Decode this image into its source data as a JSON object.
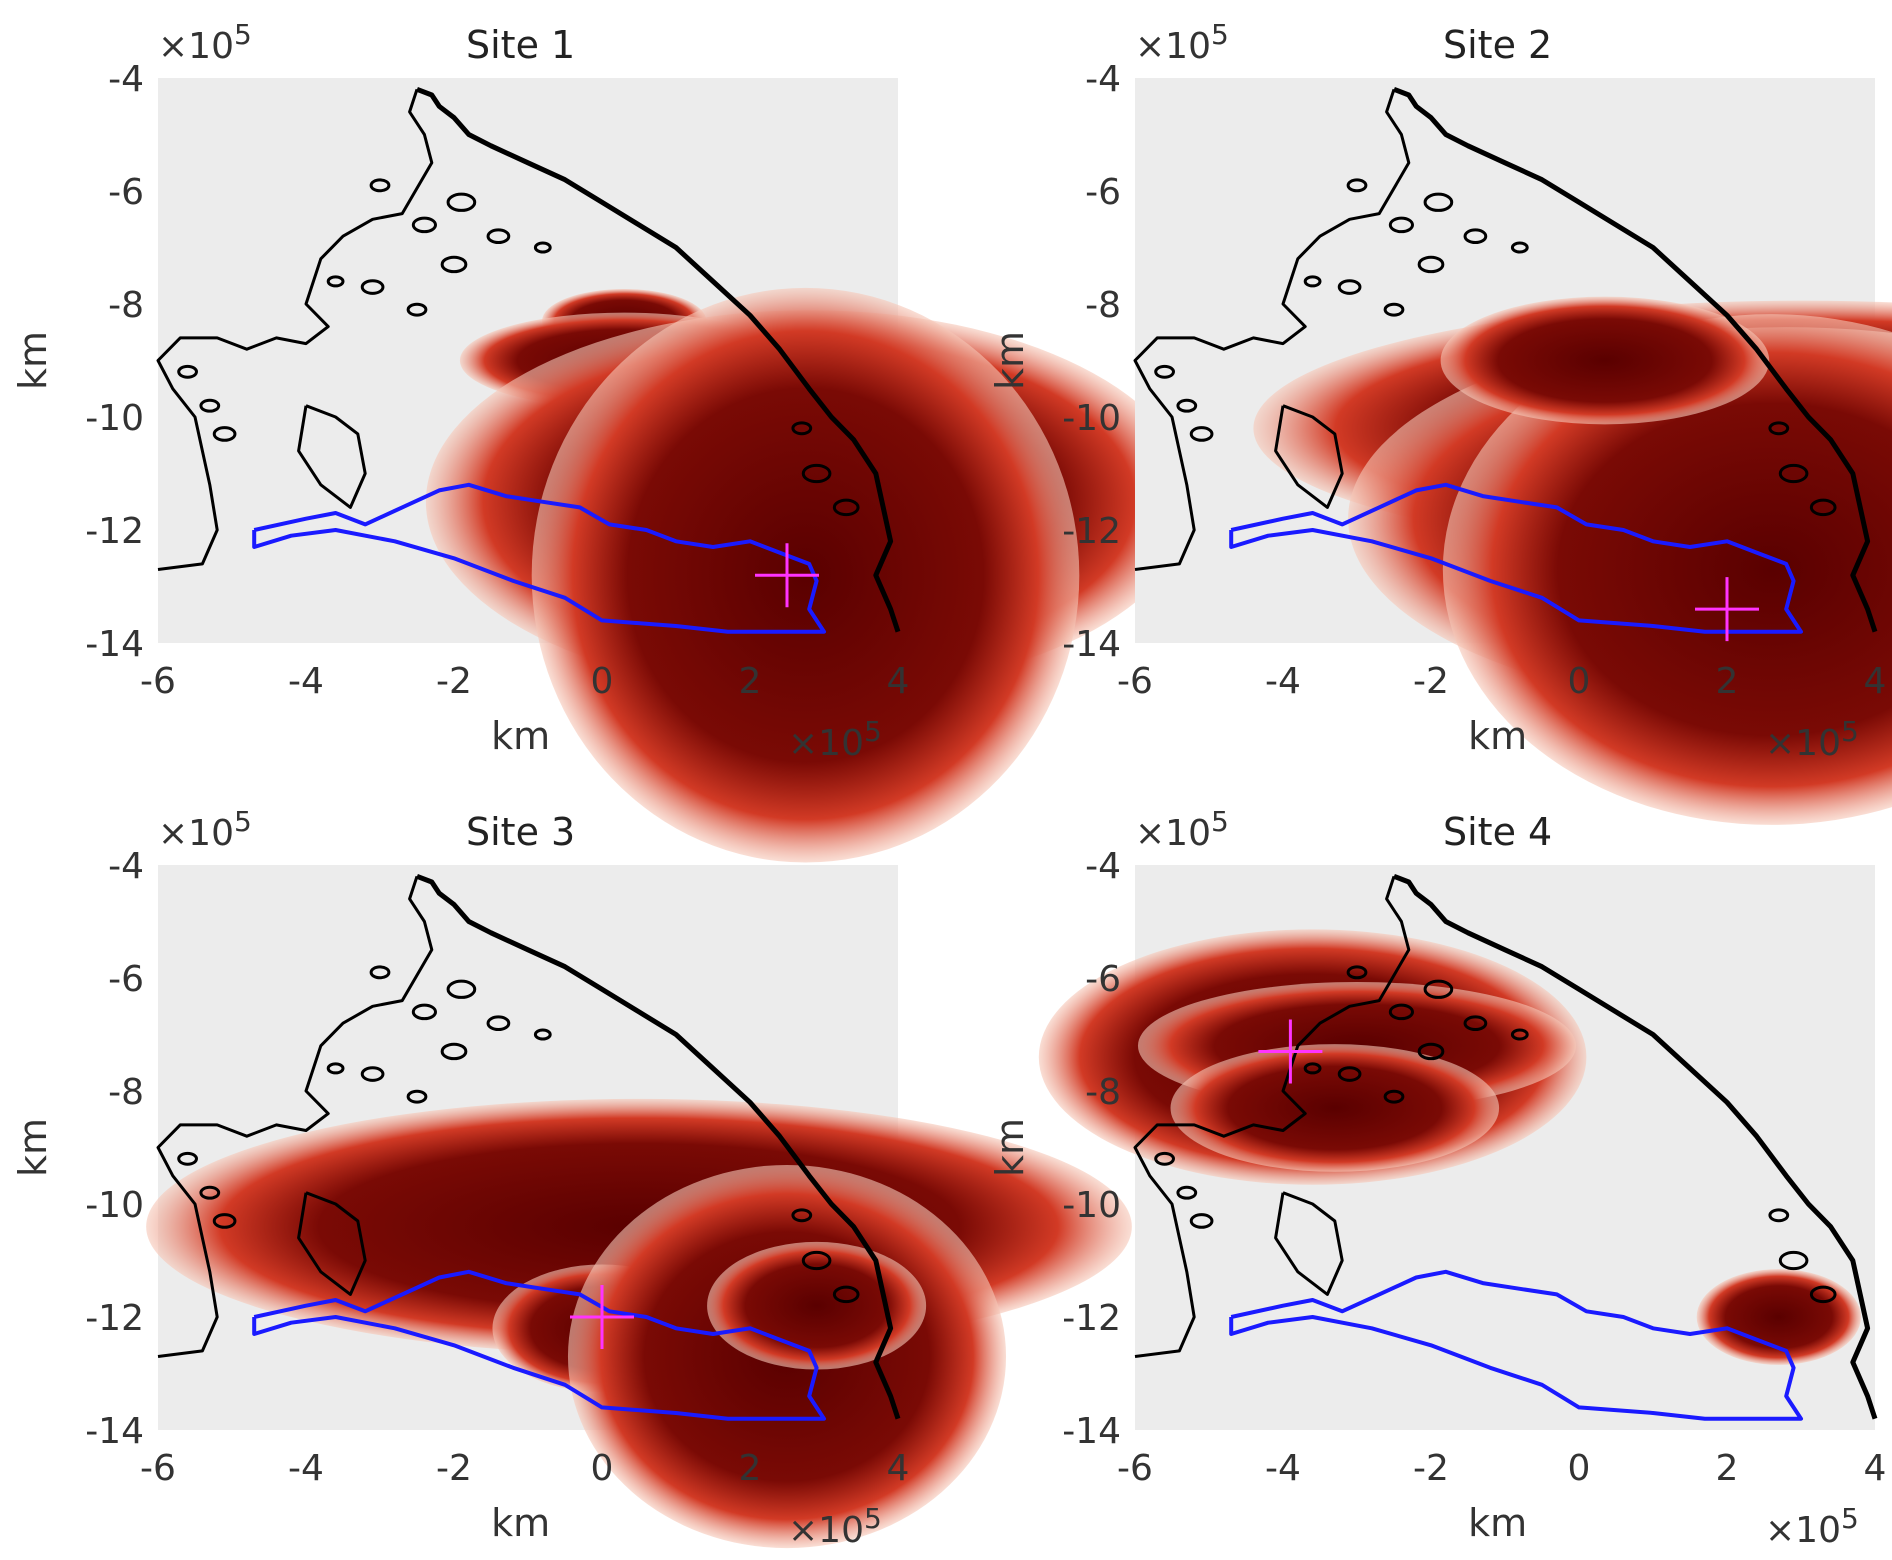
{
  "chart_data": [
    {
      "type": "map",
      "title": "Site 1",
      "xlabel": "km",
      "ylabel": "km",
      "xlim": [
        -600000,
        400000
      ],
      "ylim": [
        -1400000,
        -400000
      ],
      "xticks": [
        -600000,
        -400000,
        -200000,
        0,
        200000,
        400000
      ],
      "yticks": [
        -1400000,
        -1200000,
        -1000000,
        -800000,
        -600000,
        -400000
      ],
      "xtick_labels": [
        "-6",
        "-4",
        "-2",
        "0",
        "2",
        "4"
      ],
      "ytick_labels": [
        "-14",
        "-12",
        "-10",
        "-8",
        "-6",
        "-4"
      ],
      "axis_exponent_prefix": "×10",
      "axis_exponent_power": "5",
      "site_marker": {
        "x": 250000,
        "y": -1280000
      },
      "hotspots": [
        {
          "x": 0.3,
          "y": -0.83,
          "rx": 0.015,
          "ry": 0.01
        },
        {
          "x": 0.3,
          "y": -0.9,
          "rx": 0.03,
          "ry": 0.015
        },
        {
          "x": 0.25,
          "y": -1.0,
          "rx": 0.008,
          "ry": 0.01
        },
        {
          "x": 2.9,
          "y": -1.07,
          "rx": 0.04,
          "ry": 0.03
        },
        {
          "x": 2.8,
          "y": -1.15,
          "rx": 0.07,
          "ry": 0.06
        },
        {
          "x": 2.75,
          "y": -1.28,
          "rx": 0.05,
          "ry": 0.09
        }
      ],
      "legend": "none",
      "grid": false
    },
    {
      "type": "map",
      "title": "Site 2",
      "xlabel": "km",
      "ylabel": "km",
      "xlim": [
        -600000,
        400000
      ],
      "ylim": [
        -1400000,
        -400000
      ],
      "xticks": [
        -600000,
        -400000,
        -200000,
        0,
        200000,
        400000
      ],
      "yticks": [
        -1400000,
        -1200000,
        -1000000,
        -800000,
        -600000,
        -400000
      ],
      "xtick_labels": [
        "-6",
        "-4",
        "-2",
        "0",
        "2",
        "4"
      ],
      "ytick_labels": [
        "-14",
        "-12",
        "-10",
        "-8",
        "-6",
        "-4"
      ],
      "axis_exponent_prefix": "×10",
      "axis_exponent_power": "5",
      "site_marker": {
        "x": 200000,
        "y": -1340000
      },
      "hotspots": [
        {
          "x": 3.0,
          "y": -1.02,
          "rx": 0.1,
          "ry": 0.04
        },
        {
          "x": 3.2,
          "y": -1.08,
          "rx": 0.05,
          "ry": 0.02
        },
        {
          "x": 2.8,
          "y": -1.18,
          "rx": 0.08,
          "ry": 0.06
        },
        {
          "x": 2.6,
          "y": -1.27,
          "rx": 0.06,
          "ry": 0.08
        },
        {
          "x": 0.35,
          "y": -0.9,
          "rx": 0.03,
          "ry": 0.02
        }
      ],
      "legend": "none",
      "grid": false
    },
    {
      "type": "map",
      "title": "Site 3",
      "xlabel": "km",
      "ylabel": "km",
      "xlim": [
        -600000,
        400000
      ],
      "ylim": [
        -1400000,
        -400000
      ],
      "xticks": [
        -600000,
        -400000,
        -200000,
        0,
        200000,
        400000
      ],
      "yticks": [
        -1400000,
        -1200000,
        -1000000,
        -800000,
        -600000,
        -400000
      ],
      "xtick_labels": [
        "-6",
        "-4",
        "-2",
        "0",
        "2",
        "4"
      ],
      "ytick_labels": [
        "-14",
        "-12",
        "-10",
        "-8",
        "-6",
        "-4"
      ],
      "axis_exponent_prefix": "×10",
      "axis_exponent_power": "5",
      "site_marker": {
        "x": 0,
        "y": -1200000
      },
      "hotspots": [
        {
          "x": 0.5,
          "y": -1.04,
          "rx": 0.09,
          "ry": 0.04
        },
        {
          "x": 0.0,
          "y": -1.22,
          "rx": 0.02,
          "ry": 0.02
        },
        {
          "x": 2.5,
          "y": -1.27,
          "rx": 0.04,
          "ry": 0.06
        },
        {
          "x": 2.9,
          "y": -1.18,
          "rx": 0.02,
          "ry": 0.02
        }
      ],
      "legend": "none",
      "grid": false
    },
    {
      "type": "map",
      "title": "Site 4",
      "xlabel": "km",
      "ylabel": "km",
      "xlim": [
        -600000,
        400000
      ],
      "ylim": [
        -1400000,
        -400000
      ],
      "xticks": [
        -600000,
        -400000,
        -200000,
        0,
        200000,
        400000
      ],
      "yticks": [
        -1400000,
        -1200000,
        -1000000,
        -800000,
        -600000,
        -400000
      ],
      "xtick_labels": [
        "-6",
        "-4",
        "-2",
        "0",
        "2",
        "4"
      ],
      "ytick_labels": [
        "-14",
        "-12",
        "-10",
        "-8",
        "-6",
        "-4"
      ],
      "axis_exponent_prefix": "×10",
      "axis_exponent_power": "5",
      "site_marker": {
        "x": -390000,
        "y": -730000
      },
      "hotspots": [
        {
          "x": -3.6,
          "y": -0.74,
          "rx": 0.05,
          "ry": 0.04
        },
        {
          "x": -3.0,
          "y": -0.72,
          "rx": 0.04,
          "ry": 0.02
        },
        {
          "x": -3.3,
          "y": -0.83,
          "rx": 0.03,
          "ry": 0.02
        },
        {
          "x": 2.7,
          "y": -1.2,
          "rx": 0.015,
          "ry": 0.015
        }
      ],
      "legend": "none",
      "grid": false
    }
  ],
  "colors": {
    "plot_background": "#ececec",
    "coastline": "#000000",
    "catchment_outline": "#1a1aff",
    "site_marker": "#ff33ff",
    "hotspot_core": "#6b0000",
    "hotspot_edge": "#e0402a"
  }
}
